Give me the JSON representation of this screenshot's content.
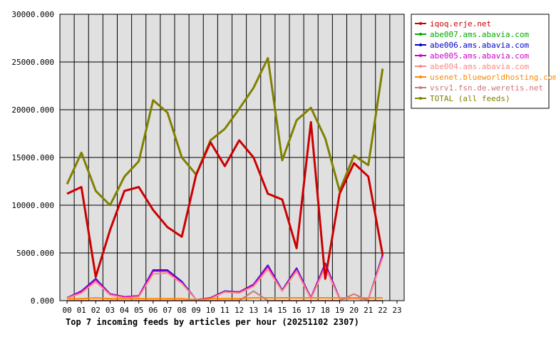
{
  "chart_data": {
    "type": "line",
    "caption": "Top 7 incoming feeds by articles per hour (20251102 2307)",
    "xlabel": "",
    "ylabel": "",
    "categories": [
      "00",
      "01",
      "02",
      "03",
      "04",
      "05",
      "06",
      "07",
      "08",
      "09",
      "10",
      "11",
      "12",
      "13",
      "14",
      "15",
      "16",
      "17",
      "18",
      "19",
      "20",
      "21",
      "22",
      "23"
    ],
    "ylim": [
      0,
      30000
    ],
    "yticks": [
      "0.000",
      "5000.000",
      "10000.000",
      "15000.000",
      "20000.000",
      "25000.000",
      "30000.000"
    ],
    "grid": true,
    "legend_position": "right",
    "background_color": "#e0e0e0",
    "series": [
      {
        "name": "iqoq.erje.net",
        "color": "#cc0000",
        "values": [
          11200,
          11900,
          2500,
          7400,
          11500,
          11900,
          9500,
          7700,
          6700,
          13200,
          16600,
          14100,
          16800,
          15000,
          11200,
          10600,
          5500,
          18700,
          2300,
          11200,
          14400,
          13000,
          4800,
          null
        ]
      },
      {
        "name": "abe007.ams.abavia.com",
        "color": "#00aa00",
        "values": [
          300,
          1000,
          2300,
          700,
          400,
          500,
          3200,
          3200,
          2000,
          100,
          300,
          1000,
          900,
          1700,
          3700,
          1100,
          3400,
          300,
          3900,
          200,
          300,
          100,
          4800,
          null
        ]
      },
      {
        "name": "abe006.ams.abavia.com",
        "color": "#0000cc",
        "values": [
          300,
          1000,
          2300,
          700,
          400,
          500,
          3200,
          3200,
          2000,
          100,
          300,
          1000,
          900,
          1700,
          3700,
          1100,
          3400,
          300,
          3900,
          200,
          300,
          100,
          4800,
          null
        ]
      },
      {
        "name": "abe005.ams.abavia.com",
        "color": "#cc00cc",
        "values": [
          300,
          950,
          2200,
          700,
          400,
          500,
          3100,
          3100,
          1900,
          100,
          300,
          950,
          900,
          1650,
          3600,
          1050,
          3300,
          300,
          3800,
          200,
          300,
          100,
          4700,
          null
        ]
      },
      {
        "name": "abe004.ams.abavia.com",
        "color": "#ff8888",
        "values": [
          250,
          800,
          2000,
          600,
          300,
          400,
          2800,
          2900,
          1800,
          100,
          200,
          900,
          800,
          1500,
          3300,
          1000,
          3100,
          200,
          3500,
          150,
          250,
          80,
          4500,
          null
        ]
      },
      {
        "name": "usenet.blueworldhosting.com",
        "color": "#ff8800",
        "values": [
          200,
          200,
          300,
          200,
          200,
          200,
          200,
          200,
          200,
          100,
          200,
          200,
          200,
          300,
          300,
          300,
          300,
          300,
          300,
          300,
          300,
          300,
          300,
          null
        ]
      },
      {
        "name": "vsrv1.fsn.de.weretis.net",
        "color": "#cc7777",
        "values": [
          0,
          0,
          0,
          0,
          0,
          0,
          0,
          0,
          0,
          0,
          0,
          0,
          0,
          1000,
          0,
          0,
          0,
          0,
          0,
          0,
          700,
          0,
          0,
          null
        ]
      },
      {
        "name": "TOTAL (all feeds)",
        "color": "#808000",
        "values": [
          12200,
          15500,
          11500,
          10000,
          13000,
          14600,
          21000,
          19700,
          15000,
          13200,
          16800,
          18000,
          20100,
          22300,
          25400,
          14700,
          18900,
          20200,
          17000,
          11500,
          15200,
          14200,
          24300,
          null
        ]
      }
    ]
  }
}
